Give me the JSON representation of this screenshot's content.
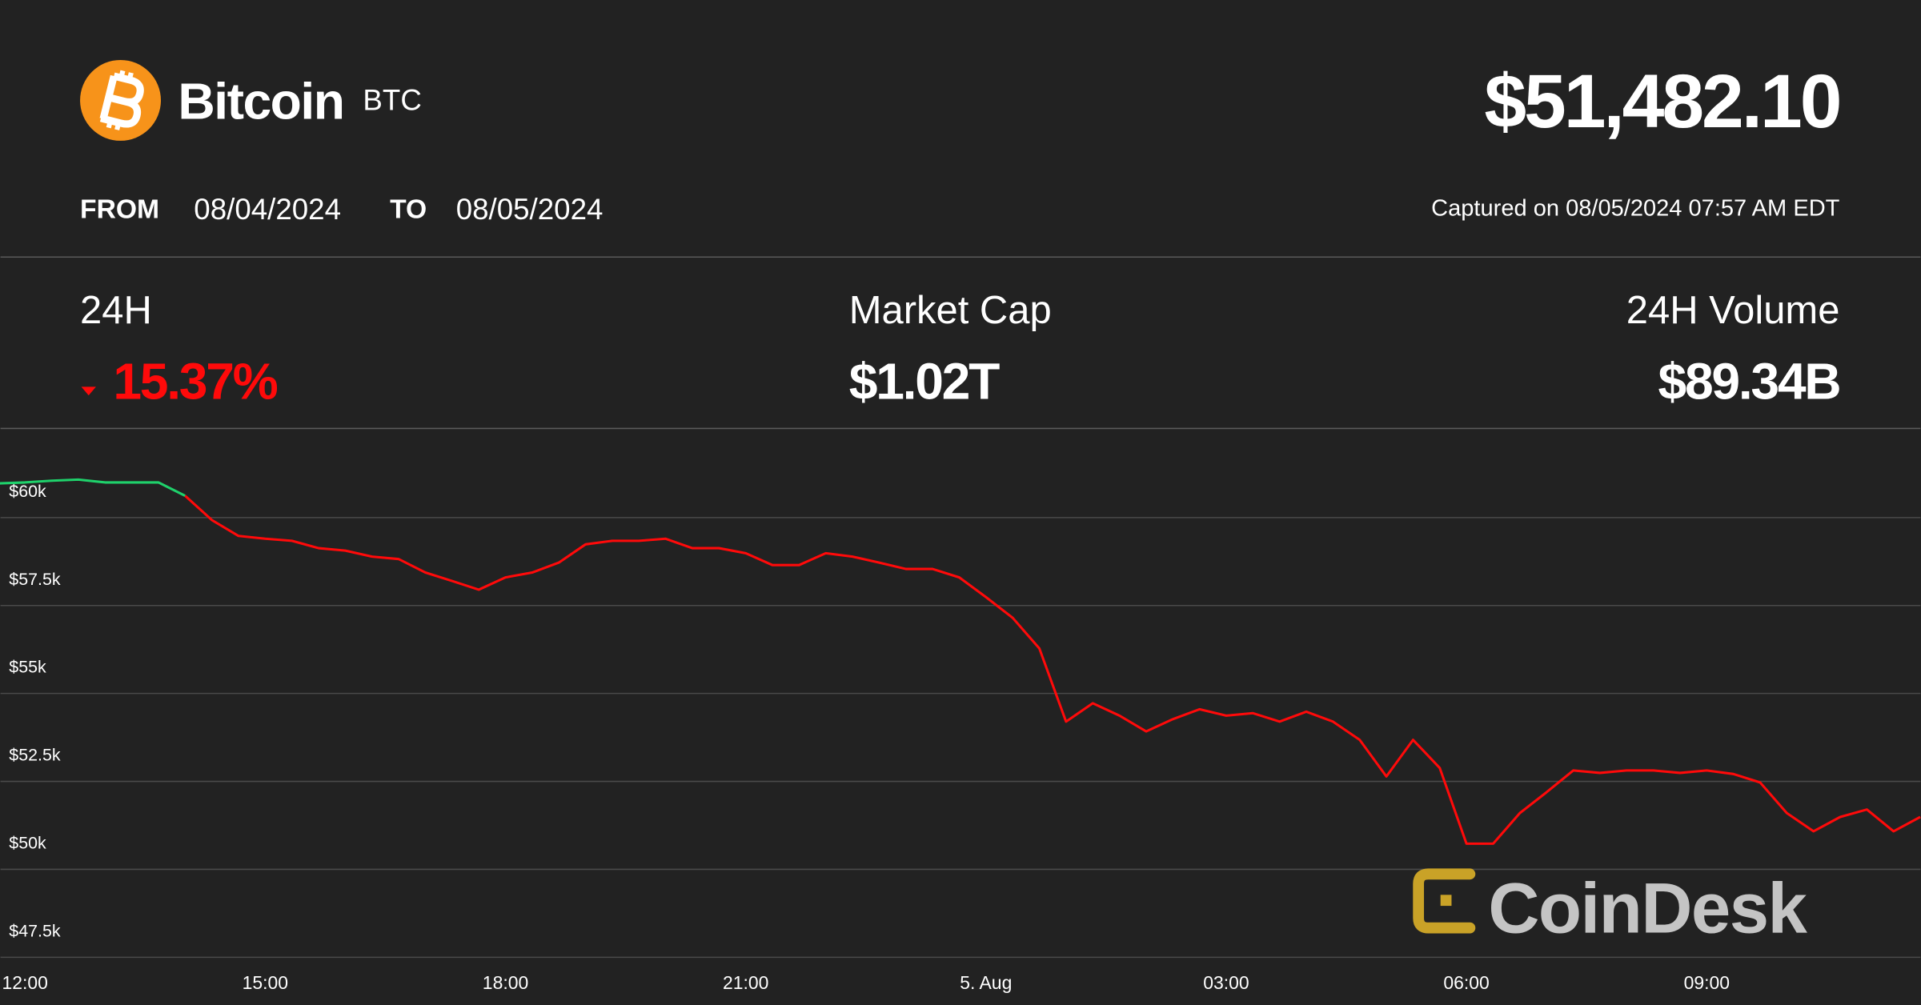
{
  "header": {
    "name": "Bitcoin",
    "symbol": "BTC",
    "price": "$51,482.10",
    "from_label": "FROM",
    "from_date": "08/04/2024",
    "to_label": "TO",
    "to_date": "08/05/2024",
    "captured": "Captured on 08/05/2024 07:57 AM EDT"
  },
  "stats": [
    {
      "label": "24H",
      "value": "15.37%"
    },
    {
      "label": "Market Cap",
      "value": "$1.02T"
    },
    {
      "label": "24H Volume",
      "value": "$89.34B"
    }
  ],
  "watermark": "CoinDesk",
  "chart_data": {
    "type": "line",
    "categories": [
      null,
      "12:00",
      null,
      null,
      null,
      null,
      null,
      null,
      null,
      null,
      "15:00",
      null,
      null,
      null,
      null,
      null,
      null,
      null,
      null,
      "18:00",
      null,
      null,
      null,
      null,
      null,
      null,
      null,
      null,
      "21:00",
      null,
      null,
      null,
      null,
      null,
      null,
      null,
      null,
      "5. Aug",
      null,
      null,
      null,
      null,
      null,
      null,
      null,
      null,
      "03:00",
      null,
      null,
      null,
      null,
      null,
      null,
      null,
      null,
      "06:00",
      null,
      null,
      null,
      null,
      null,
      null,
      null,
      null,
      "09:00",
      null,
      null,
      null,
      null,
      null,
      null,
      null,
      null
    ],
    "values": [
      60972,
      61000,
      61050,
      61080,
      61000,
      61000,
      61000,
      60620,
      59930,
      59480,
      59400,
      59340,
      59130,
      59060,
      58890,
      58820,
      58440,
      58200,
      57950,
      58300,
      58440,
      58720,
      59240,
      59340,
      59340,
      59400,
      59130,
      59130,
      58990,
      58650,
      58650,
      58990,
      58890,
      58720,
      58540,
      58540,
      58300,
      57740,
      57150,
      56280,
      54200,
      54720,
      54370,
      53920,
      54270,
      54550,
      54370,
      54440,
      54200,
      54480,
      54200,
      53680,
      52640,
      53680,
      52880,
      50730,
      50730,
      51600,
      52190,
      52810,
      52740,
      52810,
      52810,
      52740,
      52810,
      52710,
      52470,
      51600,
      51080,
      51490,
      51700,
      51080,
      51490
    ],
    "colors": {
      "up": "#1fd16b",
      "down": "#ff0a0a"
    },
    "ylim": [
      47500,
      62500
    ],
    "yticks": [
      {
        "value": 47500,
        "label": "$47.5k"
      },
      {
        "value": 50000,
        "label": "$50k"
      },
      {
        "value": 52500,
        "label": "$52.5k"
      },
      {
        "value": 55000,
        "label": "$55k"
      },
      {
        "value": 57500,
        "label": "$57.5k"
      },
      {
        "value": 60000,
        "label": "$60k"
      }
    ],
    "grid": true
  }
}
